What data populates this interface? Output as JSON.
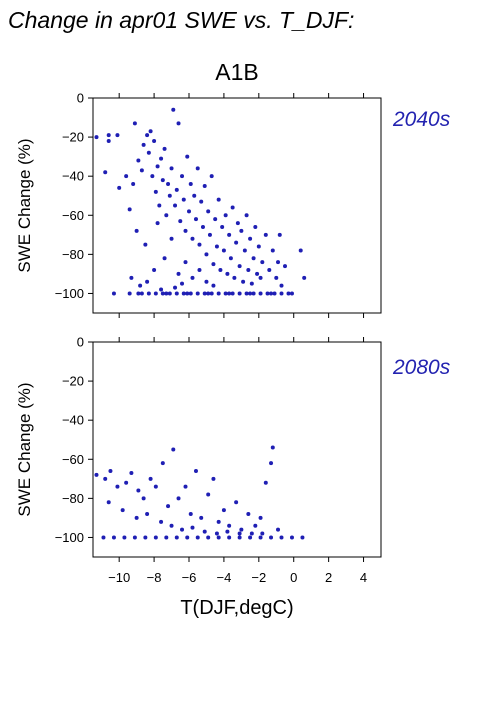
{
  "figure": {
    "title": "Change in apr01 SWE vs. T_DJF:",
    "scenario": "A1B",
    "xlabel": "T(DJF,degC)",
    "point_color": "#1f1fb4",
    "label_color": "#2323b0"
  },
  "chart_data": [
    {
      "type": "scatter",
      "panel": "2040s",
      "scenario": "A1B",
      "xlabel": "T(DJF,degC)",
      "ylabel": "SWE Change (%)",
      "xlim": [
        -11.5,
        5
      ],
      "ylim": [
        -110,
        0
      ],
      "xticks": [
        -10,
        -8,
        -6,
        -4,
        -2,
        0,
        2,
        4
      ],
      "xtick_labels": [
        "−10",
        "−8",
        "−6",
        "−4",
        "−2",
        "0",
        "2",
        "4"
      ],
      "yticks": [
        0,
        -20,
        -40,
        -60,
        -80,
        -100
      ],
      "ytick_labels": [
        "0",
        "−20",
        "−40",
        "−60",
        "−80",
        "−100"
      ],
      "grid": false,
      "points": [
        [
          -11.3,
          -20
        ],
        [
          -10.6,
          -19
        ],
        [
          -10.8,
          -38
        ],
        [
          -10.6,
          -22
        ],
        [
          -10.1,
          -19
        ],
        [
          -10.0,
          -46
        ],
        [
          -9.6,
          -40
        ],
        [
          -9.4,
          -57
        ],
        [
          -9.2,
          -44
        ],
        [
          -9.1,
          -13
        ],
        [
          -8.9,
          -32
        ],
        [
          -8.7,
          -37
        ],
        [
          -8.6,
          -24
        ],
        [
          -8.4,
          -19
        ],
        [
          -8.3,
          -28
        ],
        [
          -8.2,
          -17
        ],
        [
          -8.1,
          -40
        ],
        [
          -8.0,
          -22
        ],
        [
          -7.9,
          -48
        ],
        [
          -7.8,
          -35
        ],
        [
          -7.7,
          -55
        ],
        [
          -7.6,
          -31
        ],
        [
          -7.5,
          -42
        ],
        [
          -7.4,
          -26
        ],
        [
          -7.3,
          -60
        ],
        [
          -7.2,
          -44
        ],
        [
          -7.1,
          -50
        ],
        [
          -7.0,
          -36
        ],
        [
          -6.9,
          -6
        ],
        [
          -6.8,
          -55
        ],
        [
          -6.7,
          -47
        ],
        [
          -6.6,
          -13
        ],
        [
          -6.5,
          -63
        ],
        [
          -6.4,
          -40
        ],
        [
          -6.3,
          -52
        ],
        [
          -6.2,
          -68
        ],
        [
          -6.1,
          -30
        ],
        [
          -6.0,
          -58
        ],
        [
          -5.9,
          -44
        ],
        [
          -5.8,
          -72
        ],
        [
          -5.7,
          -50
        ],
        [
          -5.6,
          -62
        ],
        [
          -5.5,
          -36
        ],
        [
          -5.4,
          -75
        ],
        [
          -5.3,
          -53
        ],
        [
          -5.2,
          -66
        ],
        [
          -5.1,
          -45
        ],
        [
          -5.0,
          -80
        ],
        [
          -4.9,
          -58
        ],
        [
          -4.8,
          -70
        ],
        [
          -4.7,
          -40
        ],
        [
          -4.6,
          -85
        ],
        [
          -4.5,
          -62
        ],
        [
          -4.4,
          -76
        ],
        [
          -4.3,
          -52
        ],
        [
          -4.2,
          -88
        ],
        [
          -4.1,
          -66
        ],
        [
          -4.0,
          -78
        ],
        [
          -3.9,
          -60
        ],
        [
          -3.8,
          -90
        ],
        [
          -3.7,
          -70
        ],
        [
          -3.6,
          -82
        ],
        [
          -3.5,
          -56
        ],
        [
          -3.4,
          -92
        ],
        [
          -3.3,
          -74
        ],
        [
          -3.2,
          -64
        ],
        [
          -3.1,
          -86
        ],
        [
          -3.0,
          -68
        ],
        [
          -2.9,
          -94
        ],
        [
          -2.8,
          -78
        ],
        [
          -2.7,
          -60
        ],
        [
          -2.6,
          -88
        ],
        [
          -2.5,
          -72
        ],
        [
          -2.4,
          -95
        ],
        [
          -2.3,
          -82
        ],
        [
          -2.2,
          -66
        ],
        [
          -2.1,
          -90
        ],
        [
          -2.0,
          -76
        ],
        [
          -1.9,
          -92
        ],
        [
          -1.8,
          -84
        ],
        [
          -1.6,
          -70
        ],
        [
          -1.4,
          -88
        ],
        [
          -1.2,
          -78
        ],
        [
          -1.0,
          -92
        ],
        [
          -0.9,
          -84
        ],
        [
          -0.8,
          -70
        ],
        [
          -0.7,
          -96
        ],
        [
          -0.5,
          -86
        ],
        [
          0.4,
          -78
        ],
        [
          0.6,
          -92
        ],
        [
          -9.0,
          -68
        ],
        [
          -8.5,
          -75
        ],
        [
          -8.0,
          -88
        ],
        [
          -7.8,
          -64
        ],
        [
          -7.4,
          -82
        ],
        [
          -7.0,
          -72
        ],
        [
          -6.6,
          -90
        ],
        [
          -6.2,
          -84
        ],
        [
          -5.8,
          -92
        ],
        [
          -5.4,
          -88
        ],
        [
          -5.0,
          -94
        ],
        [
          -4.6,
          -96
        ],
        [
          -9.3,
          -92
        ],
        [
          -8.8,
          -96
        ],
        [
          -8.4,
          -94
        ],
        [
          -7.6,
          -98
        ],
        [
          -6.8,
          -97
        ],
        [
          -6.4,
          -95
        ],
        [
          -8.9,
          -100
        ],
        [
          -8.3,
          -100
        ],
        [
          -7.9,
          -100
        ],
        [
          -7.5,
          -100
        ],
        [
          -7.1,
          -100
        ],
        [
          -6.7,
          -100
        ],
        [
          -6.3,
          -100
        ],
        [
          -5.9,
          -100
        ],
        [
          -5.5,
          -100
        ],
        [
          -5.1,
          -100
        ],
        [
          -4.7,
          -100
        ],
        [
          -4.3,
          -100
        ],
        [
          -3.9,
          -100
        ],
        [
          -3.5,
          -100
        ],
        [
          -3.1,
          -100
        ],
        [
          -2.7,
          -100
        ],
        [
          -2.3,
          -100
        ],
        [
          -1.9,
          -100
        ],
        [
          -1.5,
          -100
        ],
        [
          -1.1,
          -100
        ],
        [
          -0.7,
          -100
        ],
        [
          -0.3,
          -100
        ],
        [
          -10.3,
          -100
        ],
        [
          -9.4,
          -100
        ],
        [
          -8.7,
          -100
        ],
        [
          -7.3,
          -100
        ],
        [
          -6.1,
          -100
        ],
        [
          -4.9,
          -100
        ],
        [
          -3.7,
          -100
        ],
        [
          -2.5,
          -100
        ],
        [
          -1.3,
          -100
        ],
        [
          -0.1,
          -100
        ]
      ]
    },
    {
      "type": "scatter",
      "panel": "2080s",
      "scenario": "A1B",
      "xlabel": "T(DJF,degC)",
      "ylabel": "SWE Change (%)",
      "xlim": [
        -11.5,
        5
      ],
      "ylim": [
        -110,
        0
      ],
      "xticks": [
        -10,
        -8,
        -6,
        -4,
        -2,
        0,
        2,
        4
      ],
      "xtick_labels": [
        "−10",
        "−8",
        "−6",
        "−4",
        "−2",
        "0",
        "2",
        "4"
      ],
      "yticks": [
        0,
        -20,
        -40,
        -60,
        -80,
        -100
      ],
      "ytick_labels": [
        "0",
        "−20",
        "−40",
        "−60",
        "−80",
        "−100"
      ],
      "grid": false,
      "points": [
        [
          -11.3,
          -68
        ],
        [
          -10.8,
          -70
        ],
        [
          -10.5,
          -66
        ],
        [
          -10.1,
          -74
        ],
        [
          -9.6,
          -72
        ],
        [
          -9.3,
          -67
        ],
        [
          -8.9,
          -76
        ],
        [
          -8.6,
          -80
        ],
        [
          -8.2,
          -70
        ],
        [
          -7.9,
          -74
        ],
        [
          -7.5,
          -62
        ],
        [
          -7.2,
          -84
        ],
        [
          -6.9,
          -55
        ],
        [
          -6.6,
          -80
        ],
        [
          -6.2,
          -74
        ],
        [
          -5.9,
          -88
        ],
        [
          -5.6,
          -66
        ],
        [
          -5.3,
          -90
        ],
        [
          -4.9,
          -78
        ],
        [
          -4.6,
          -70
        ],
        [
          -4.3,
          -92
        ],
        [
          -4.0,
          -86
        ],
        [
          -3.7,
          -94
        ],
        [
          -3.3,
          -82
        ],
        [
          -3.0,
          -96
        ],
        [
          -2.6,
          -88
        ],
        [
          -2.2,
          -94
        ],
        [
          -1.9,
          -90
        ],
        [
          -1.6,
          -72
        ],
        [
          -1.3,
          -62
        ],
        [
          -1.2,
          -54
        ],
        [
          -0.9,
          -96
        ],
        [
          -10.6,
          -82
        ],
        [
          -9.8,
          -86
        ],
        [
          -9.0,
          -90
        ],
        [
          -8.4,
          -88
        ],
        [
          -7.6,
          -92
        ],
        [
          -7.0,
          -94
        ],
        [
          -6.4,
          -96
        ],
        [
          -5.8,
          -95
        ],
        [
          -5.1,
          -97
        ],
        [
          -4.4,
          -98
        ],
        [
          -3.8,
          -97
        ],
        [
          -3.1,
          -98
        ],
        [
          -2.4,
          -98
        ],
        [
          -1.8,
          -98
        ],
        [
          -10.9,
          -100
        ],
        [
          -10.3,
          -100
        ],
        [
          -9.7,
          -100
        ],
        [
          -9.1,
          -100
        ],
        [
          -8.5,
          -100
        ],
        [
          -7.9,
          -100
        ],
        [
          -7.3,
          -100
        ],
        [
          -6.7,
          -100
        ],
        [
          -6.1,
          -100
        ],
        [
          -5.5,
          -100
        ],
        [
          -4.9,
          -100
        ],
        [
          -4.3,
          -100
        ],
        [
          -3.7,
          -100
        ],
        [
          -3.1,
          -100
        ],
        [
          -2.5,
          -100
        ],
        [
          -1.9,
          -100
        ],
        [
          -1.3,
          -100
        ],
        [
          -0.7,
          -100
        ],
        [
          -0.1,
          -100
        ],
        [
          0.5,
          -100
        ]
      ]
    }
  ]
}
